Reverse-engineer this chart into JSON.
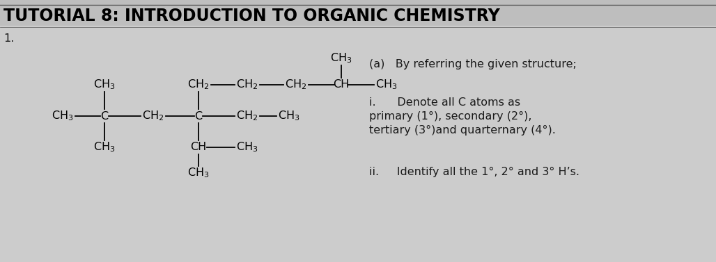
{
  "title": "TUTORIAL 8: INTRODUCTION TO ORGANIC CHEMISTRY",
  "subtitle": "1.",
  "bg_color": "#c8c8c8",
  "text_color": "#1a1a1a",
  "title_fontsize": 17,
  "body_fontsize": 11.5,
  "chem_fontsize": 11.5,
  "right_panel": {
    "a_label": "(a)   By referring the given structure;",
    "i_label": "i.      Denote all C atoms as",
    "i_line2": "primary (1°), secondary (2°),",
    "i_line3": "tertiary (3°)and quarternary (4°).",
    "ii_label": "ii.     Identify all the 1°, 2° and 3° H’s."
  }
}
